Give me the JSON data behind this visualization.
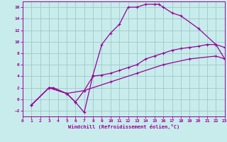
{
  "xlabel": "Windchill (Refroidissement éolien,°C)",
  "bg_color": "#c8ecec",
  "grid_color": "#a0c8c8",
  "line_color": "#990099",
  "spine_color": "#8844aa",
  "xlim": [
    0,
    23
  ],
  "ylim": [
    -3,
    17
  ],
  "xticks": [
    0,
    1,
    2,
    3,
    4,
    5,
    6,
    7,
    8,
    9,
    10,
    11,
    12,
    13,
    14,
    15,
    16,
    17,
    18,
    19,
    20,
    21,
    22,
    23
  ],
  "yticks": [
    -2,
    0,
    2,
    4,
    6,
    8,
    10,
    12,
    14,
    16
  ],
  "series": [
    {
      "x": [
        1,
        3,
        3.5,
        5,
        6,
        7,
        8,
        9,
        10,
        11,
        12,
        13,
        14,
        15,
        15.5,
        16,
        17,
        18,
        20,
        22,
        23
      ],
      "y": [
        -1,
        2,
        2,
        1,
        -0.5,
        -2.3,
        4.2,
        9.5,
        11.5,
        13,
        16,
        16,
        16.5,
        16.5,
        16.5,
        16,
        15,
        14.5,
        12.3,
        9.5,
        9
      ]
    },
    {
      "x": [
        1,
        3,
        5,
        6,
        7,
        8,
        9,
        10,
        11,
        12,
        13,
        14,
        15,
        16,
        17,
        18,
        19,
        20,
        21,
        22,
        23
      ],
      "y": [
        -1,
        2,
        1,
        -0.5,
        1.5,
        4.0,
        4.2,
        4.5,
        5,
        5.5,
        6,
        7,
        7.5,
        8,
        8.5,
        8.8,
        9,
        9.2,
        9.5,
        9.5,
        7
      ]
    },
    {
      "x": [
        1,
        3,
        5,
        7,
        10,
        13,
        16,
        19,
        22,
        23
      ],
      "y": [
        -1,
        2,
        1,
        1.5,
        3,
        4.5,
        6,
        7,
        7.5,
        7
      ]
    }
  ]
}
